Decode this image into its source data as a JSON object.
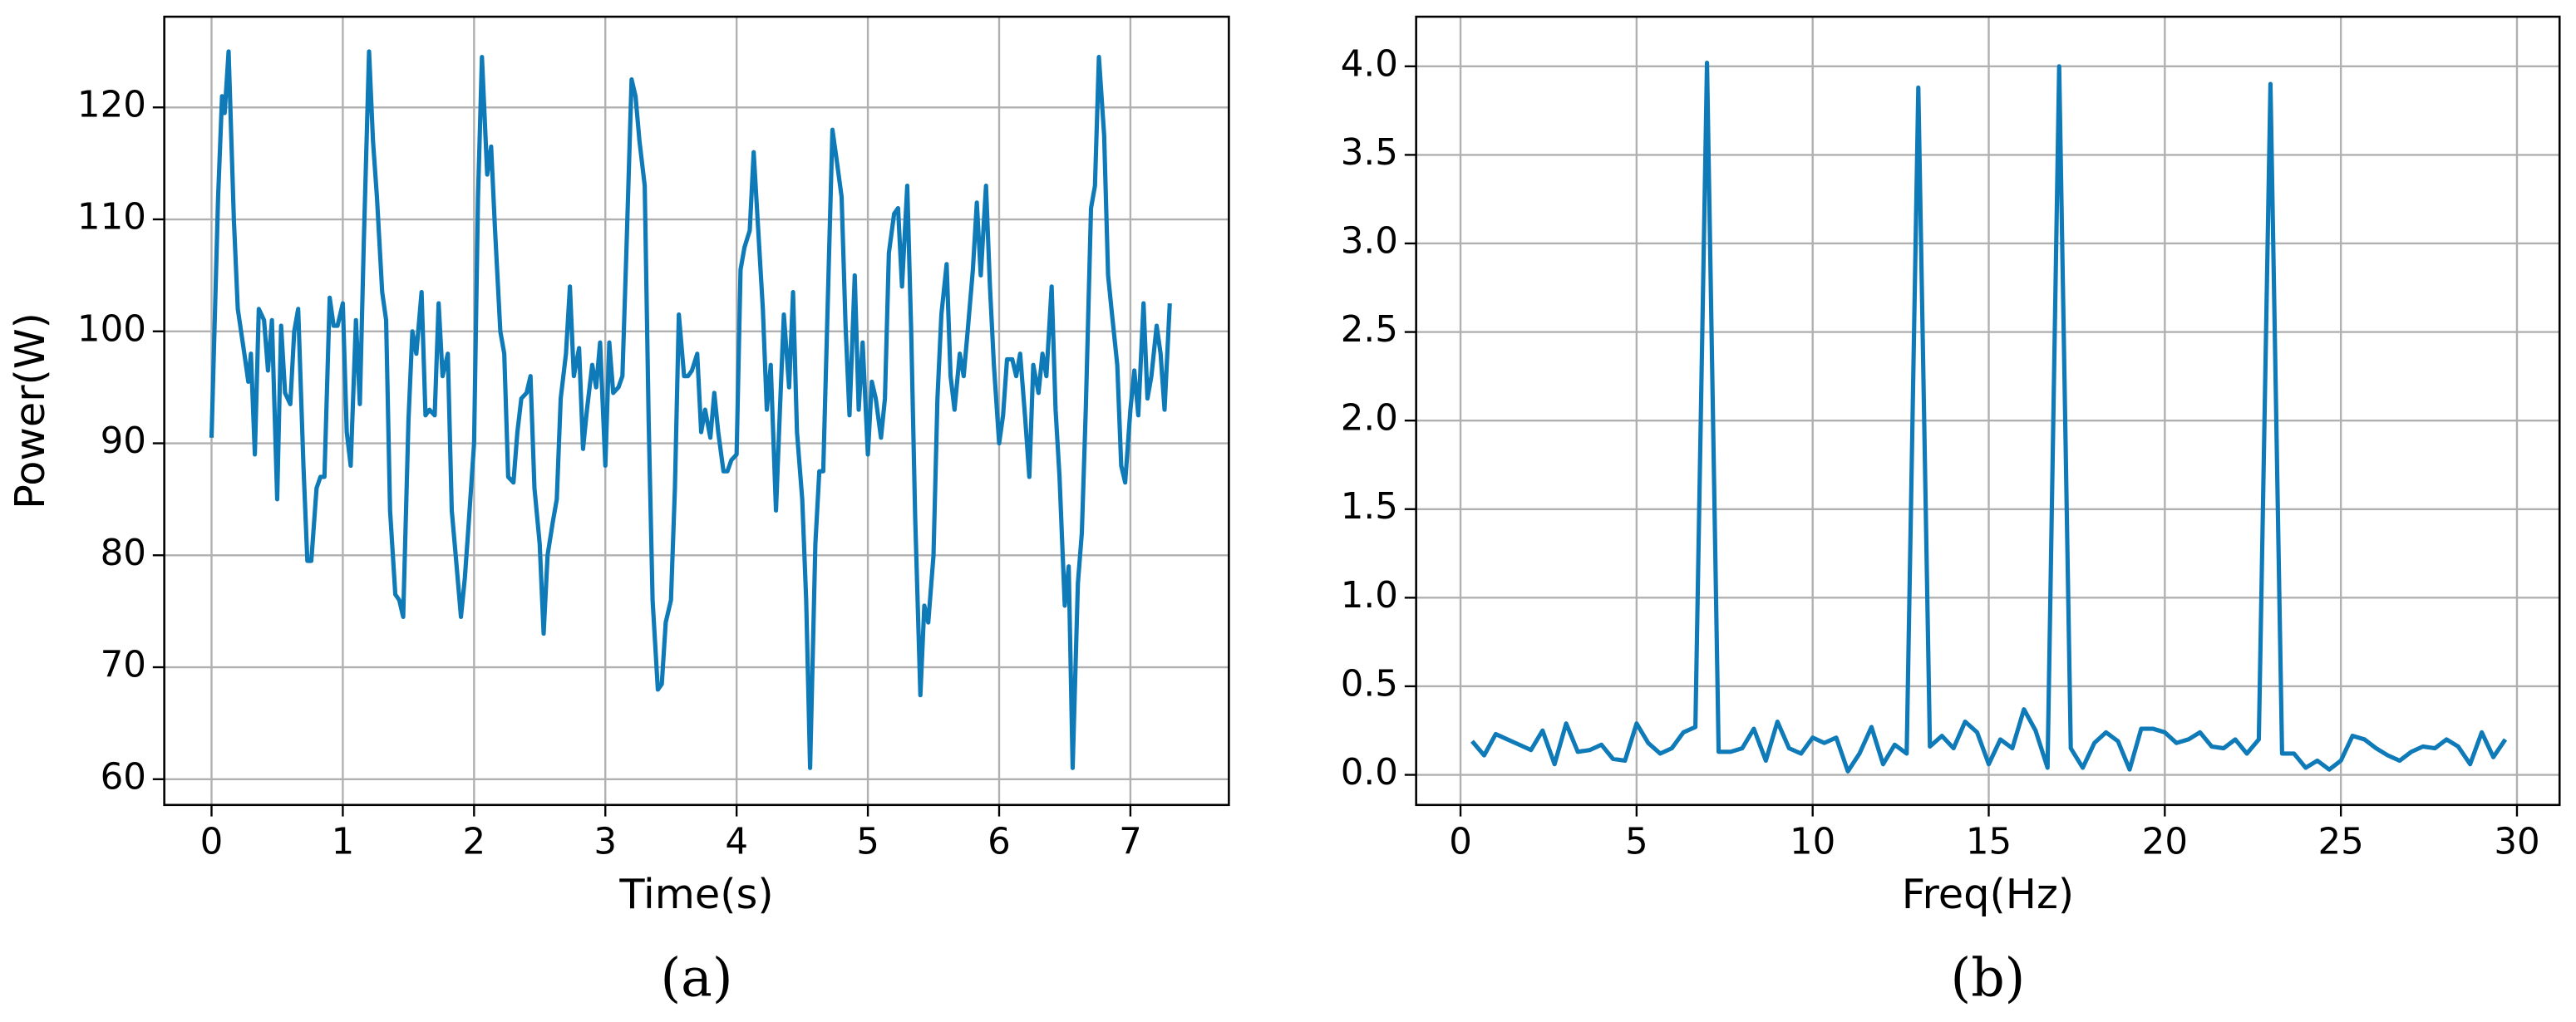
{
  "chart_data": [
    {
      "type": "line",
      "xlabel": "Time(s)",
      "ylabel": "Power(W)",
      "caption": "(a)",
      "color": "#0f7ab8",
      "grid": true,
      "xlim": [
        -0.36,
        7.75
      ],
      "ylim": [
        57.7,
        128.1
      ],
      "xticks": [
        0,
        1,
        2,
        3,
        4,
        5,
        6,
        7
      ],
      "yticks": [
        60,
        70,
        80,
        90,
        100,
        110,
        120
      ],
      "x": [
        0.0,
        0.05,
        0.08,
        0.1,
        0.13,
        0.17,
        0.2,
        0.25,
        0.28,
        0.3,
        0.33,
        0.36,
        0.4,
        0.43,
        0.46,
        0.5,
        0.53,
        0.56,
        0.6,
        0.63,
        0.66,
        0.7,
        0.73,
        0.76,
        0.8,
        0.83,
        0.86,
        0.9,
        0.93,
        0.96,
        1.0,
        1.03,
        1.06,
        1.1,
        1.13,
        1.16,
        1.2,
        1.23,
        1.26,
        1.3,
        1.33,
        1.36,
        1.4,
        1.43,
        1.46,
        1.5,
        1.53,
        1.56,
        1.6,
        1.63,
        1.66,
        1.7,
        1.73,
        1.76,
        1.8,
        1.83,
        1.86,
        1.9,
        1.93,
        1.96,
        2.0,
        2.03,
        2.06,
        2.1,
        2.13,
        2.16,
        2.2,
        2.23,
        2.26,
        2.3,
        2.33,
        2.36,
        2.4,
        2.43,
        2.46,
        2.5,
        2.53,
        2.56,
        2.6,
        2.63,
        2.66,
        2.7,
        2.73,
        2.76,
        2.8,
        2.83,
        2.86,
        2.9,
        2.93,
        2.96,
        3.0,
        3.03,
        3.06,
        3.1,
        3.13,
        3.16,
        3.2,
        3.23,
        3.26,
        3.3,
        3.33,
        3.36,
        3.4,
        3.43,
        3.46,
        3.5,
        3.53,
        3.56,
        3.6,
        3.63,
        3.66,
        3.7,
        3.73,
        3.76,
        3.8,
        3.83,
        3.86,
        3.9,
        3.93,
        3.96,
        4.0,
        4.03,
        4.06,
        4.1,
        4.13,
        4.16,
        4.2,
        4.23,
        4.26,
        4.3,
        4.33,
        4.36,
        4.4,
        4.43,
        4.46,
        4.5,
        4.53,
        4.56,
        4.6,
        4.63,
        4.66,
        4.7,
        4.73,
        4.76,
        4.8,
        4.83,
        4.86,
        4.9,
        4.93,
        4.96,
        5.0,
        5.03,
        5.06,
        5.1,
        5.13,
        5.16,
        5.2,
        5.23,
        5.26,
        5.3,
        5.33,
        5.36,
        5.4,
        5.43,
        5.46,
        5.5,
        5.53,
        5.56,
        5.6,
        5.63,
        5.66,
        5.7,
        5.73,
        5.76,
        5.8,
        5.83,
        5.86,
        5.9,
        5.93,
        5.96,
        6.0,
        6.03,
        6.06,
        6.1,
        6.13,
        6.16,
        6.2,
        6.23,
        6.26,
        6.3,
        6.33,
        6.36,
        6.4,
        6.43,
        6.46,
        6.5,
        6.53,
        6.56,
        6.6,
        6.63,
        6.66,
        6.7,
        6.73,
        6.76,
        6.8,
        6.83,
        6.86,
        6.9,
        6.93,
        6.96,
        7.0,
        7.03,
        7.06,
        7.1,
        7.13,
        7.16,
        7.2,
        7.23,
        7.26,
        7.3
      ],
      "values": [
        90.5,
        112,
        121,
        119.5,
        125,
        110,
        102,
        98,
        95.5,
        98,
        89,
        102,
        101,
        96.5,
        101,
        85,
        100.5,
        94.5,
        93.5,
        100,
        102,
        88,
        79.5,
        79.5,
        86,
        87,
        87,
        103,
        100.5,
        100.5,
        102.5,
        91,
        88,
        101,
        93.5,
        108,
        125,
        117,
        112,
        103.5,
        101,
        84,
        76.5,
        76,
        74.5,
        92,
        100,
        98,
        103.5,
        92.5,
        93,
        92.5,
        102.5,
        96,
        98,
        84,
        80,
        74.5,
        78,
        83,
        90,
        112,
        124.5,
        114,
        116.5,
        109,
        100,
        98,
        87,
        86.5,
        91,
        94,
        94.5,
        96,
        86,
        81,
        73,
        80,
        83,
        85,
        94,
        98,
        104,
        96,
        98.5,
        89.5,
        93,
        97,
        95,
        99,
        88,
        99,
        94.5,
        95,
        96,
        107,
        122.5,
        121,
        117,
        113,
        92,
        76,
        68,
        68.5,
        74,
        76,
        86,
        101.5,
        96,
        96,
        96.5,
        98,
        91,
        93,
        90.5,
        94.5,
        91,
        87.5,
        87.5,
        88.5,
        89,
        105.5,
        107.5,
        109,
        116,
        110,
        102,
        93,
        97,
        84,
        93,
        101.5,
        95,
        103.5,
        91,
        85,
        76,
        61,
        81,
        87.5,
        87.5,
        105,
        118,
        115.5,
        112,
        100.5,
        92.5,
        105,
        93,
        99,
        89,
        95.5,
        94,
        90.5,
        94,
        107,
        110.5,
        111,
        104,
        113,
        100,
        83.5,
        67.5,
        75.5,
        74,
        80,
        94,
        101.5,
        106,
        96,
        93,
        98,
        96,
        100,
        105.5,
        111.5,
        105,
        113,
        104,
        97,
        90,
        92.5,
        97.5,
        97.5,
        96,
        98,
        92,
        87,
        97,
        94.5,
        98,
        96,
        104,
        93,
        87,
        75.5,
        79,
        61,
        77.5,
        82,
        93,
        111,
        113,
        124.5,
        117.5,
        105,
        101.5,
        97,
        88,
        86.5,
        93,
        96.5,
        92.5,
        102.5,
        94,
        96,
        100.5,
        98,
        93,
        102.5
      ]
    },
    {
      "type": "line",
      "xlabel": "Freq(Hz)",
      "caption": "(b)",
      "color": "#0f7ab8",
      "grid": true,
      "xlim": [
        -1.26,
        31.21
      ],
      "ylim": [
        -0.17,
        4.28
      ],
      "xticks": [
        0,
        5,
        10,
        15,
        20,
        25,
        30
      ],
      "yticks": [
        {
          "value": 0,
          "label": "0.0"
        },
        0.5,
        {
          "value": 1,
          "label": "1.0"
        },
        1.5,
        {
          "value": 2,
          "label": "2.0"
        },
        2.5,
        {
          "value": 3,
          "label": "3.0"
        },
        3.5,
        {
          "value": 4,
          "label": "4.0"
        }
      ],
      "x": [
        0.33,
        0.67,
        1.0,
        1.33,
        1.67,
        2.0,
        2.33,
        2.67,
        3.0,
        3.33,
        3.67,
        4.0,
        4.33,
        4.67,
        5.0,
        5.33,
        5.67,
        6.0,
        6.33,
        6.67,
        7.0,
        7.33,
        7.67,
        8.0,
        8.33,
        8.67,
        9.0,
        9.33,
        9.67,
        10.0,
        10.33,
        10.67,
        11.0,
        11.33,
        11.67,
        12.0,
        12.33,
        12.67,
        13.0,
        13.33,
        13.67,
        14.0,
        14.33,
        14.67,
        15.0,
        15.33,
        15.67,
        16.0,
        16.33,
        16.67,
        17.0,
        17.33,
        17.67,
        18.0,
        18.33,
        18.67,
        19.0,
        19.33,
        19.67,
        20.0,
        20.33,
        20.67,
        21.0,
        21.33,
        21.67,
        22.0,
        22.33,
        22.67,
        23.0,
        23.33,
        23.67,
        24.0,
        24.33,
        24.67,
        25.0,
        25.33,
        25.67,
        26.0,
        26.33,
        26.67,
        27.0,
        27.33,
        27.67,
        28.0,
        28.33,
        28.67,
        29.0,
        29.33,
        29.67
      ],
      "values": [
        0.19,
        0.11,
        0.23,
        0.2,
        0.17,
        0.14,
        0.25,
        0.06,
        0.29,
        0.13,
        0.14,
        0.17,
        0.09,
        0.08,
        0.29,
        0.18,
        0.12,
        0.15,
        0.24,
        0.27,
        4.02,
        0.13,
        0.13,
        0.15,
        0.26,
        0.08,
        0.3,
        0.15,
        0.12,
        0.21,
        0.18,
        0.21,
        0.02,
        0.12,
        0.27,
        0.06,
        0.17,
        0.12,
        3.88,
        0.16,
        0.22,
        0.15,
        0.3,
        0.24,
        0.06,
        0.2,
        0.15,
        0.37,
        0.25,
        0.04,
        4.0,
        0.15,
        0.04,
        0.18,
        0.24,
        0.19,
        0.03,
        0.26,
        0.26,
        0.24,
        0.18,
        0.2,
        0.24,
        0.16,
        0.15,
        0.2,
        0.12,
        0.2,
        3.9,
        0.12,
        0.12,
        0.04,
        0.08,
        0.03,
        0.08,
        0.22,
        0.2,
        0.15,
        0.11,
        0.08,
        0.13,
        0.16,
        0.15,
        0.2,
        0.16,
        0.06,
        0.24,
        0.1,
        0.2
      ]
    }
  ]
}
